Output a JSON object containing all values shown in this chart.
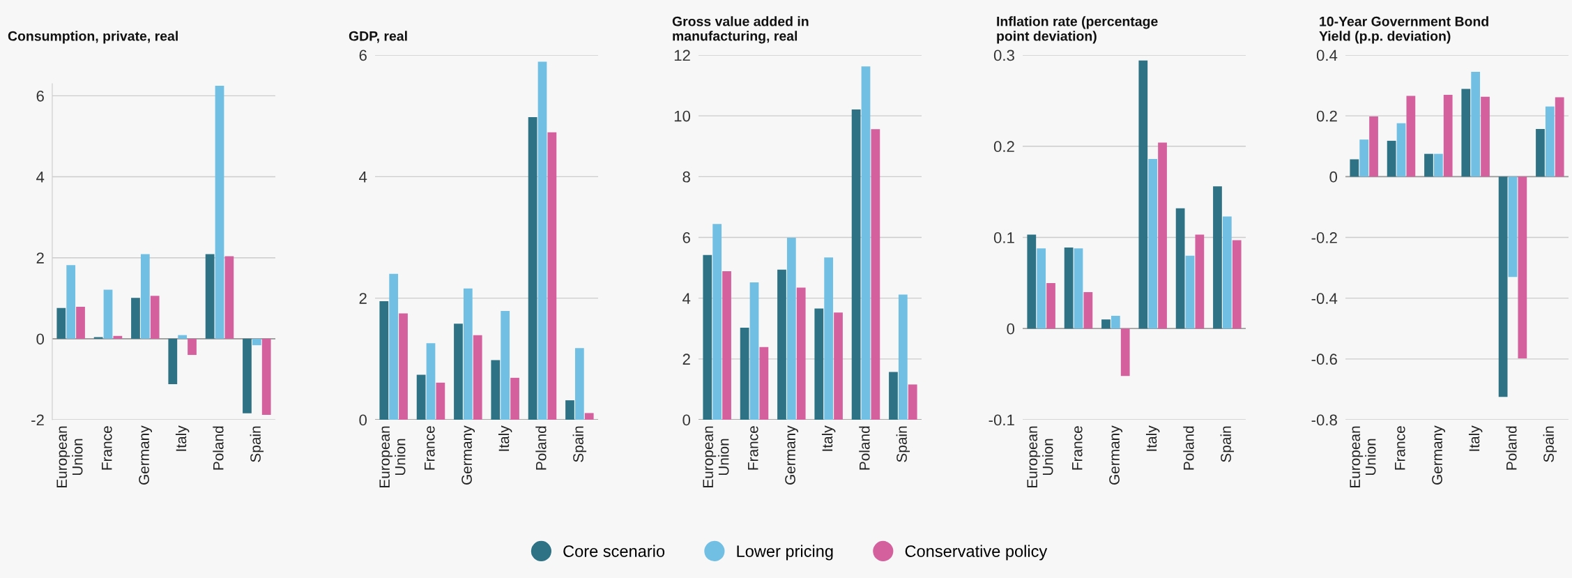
{
  "chart_data": [
    {
      "type": "bar",
      "title": "Consumption, private, real",
      "categories": [
        "European Union",
        "France",
        "Germany",
        "Italy",
        "Poland",
        "Spain"
      ],
      "legend": "bottom",
      "grid": "y",
      "ylim": [
        -2,
        6.3
      ],
      "yticks": [
        -2,
        0,
        2,
        4,
        6
      ],
      "series": [
        {
          "name": "Core scenario",
          "color": "#2e7285",
          "values": [
            0.76,
            0.04,
            1.01,
            -1.12,
            2.09,
            -1.84
          ]
        },
        {
          "name": "Lower pricing",
          "color": "#72bfe4",
          "values": [
            1.82,
            1.21,
            2.09,
            0.09,
            6.25,
            -0.16
          ]
        },
        {
          "name": "Conservative policy",
          "color": "#d5609e",
          "values": [
            0.79,
            0.07,
            1.06,
            -0.4,
            2.04,
            -1.88
          ]
        }
      ]
    },
    {
      "type": "bar",
      "title": "GDP, real",
      "categories": [
        "European Union",
        "France",
        "Germany",
        "Italy",
        "Poland",
        "Spain"
      ],
      "legend": "bottom",
      "grid": "y",
      "ylim": [
        0,
        6
      ],
      "yticks": [
        0,
        2,
        4,
        6
      ],
      "series": [
        {
          "name": "Core scenario",
          "color": "#2e7285",
          "values": [
            1.95,
            0.74,
            1.58,
            0.98,
            4.98,
            0.32
          ]
        },
        {
          "name": "Lower pricing",
          "color": "#72bfe4",
          "values": [
            2.4,
            1.26,
            2.16,
            1.79,
            5.89,
            1.18
          ]
        },
        {
          "name": "Conservative policy",
          "color": "#d5609e",
          "values": [
            1.75,
            0.61,
            1.39,
            0.69,
            4.73,
            0.11
          ]
        }
      ]
    },
    {
      "type": "bar",
      "title": "Gross value added in\nmanufacturing, real",
      "categories": [
        "European Union",
        "France",
        "Germany",
        "Italy",
        "Poland",
        "Spain"
      ],
      "legend": "bottom",
      "grid": "y",
      "ylim": [
        0,
        12
      ],
      "yticks": [
        0,
        2,
        4,
        6,
        8,
        10,
        12
      ],
      "series": [
        {
          "name": "Core scenario",
          "color": "#2e7285",
          "values": [
            5.42,
            3.03,
            4.94,
            3.66,
            10.21,
            1.57
          ]
        },
        {
          "name": "Lower pricing",
          "color": "#72bfe4",
          "values": [
            6.44,
            4.52,
            5.99,
            5.34,
            11.63,
            4.12
          ]
        },
        {
          "name": "Conservative policy",
          "color": "#d5609e",
          "values": [
            4.89,
            2.39,
            4.35,
            3.53,
            9.56,
            1.16
          ]
        }
      ]
    },
    {
      "type": "bar",
      "title": "Inflation rate (percentage\npoint deviation)",
      "categories": [
        "European Union",
        "France",
        "Germany",
        "Italy",
        "Poland",
        "Spain"
      ],
      "legend": "bottom",
      "grid": "y",
      "ylim": [
        -0.1,
        0.3
      ],
      "yticks": [
        -0.1,
        0,
        0.1,
        0.2,
        0.3
      ],
      "series": [
        {
          "name": "Core scenario",
          "color": "#2e7285",
          "values": [
            0.103,
            0.089,
            0.01,
            0.294,
            0.132,
            0.156
          ]
        },
        {
          "name": "Lower pricing",
          "color": "#72bfe4",
          "values": [
            0.088,
            0.088,
            0.014,
            0.186,
            0.08,
            0.123
          ]
        },
        {
          "name": "Conservative policy",
          "color": "#d5609e",
          "values": [
            0.05,
            0.04,
            -0.052,
            0.204,
            0.103,
            0.097
          ]
        }
      ]
    },
    {
      "type": "bar",
      "title": "10-Year Government Bond\nYield (p.p. deviation)",
      "categories": [
        "European Union",
        "France",
        "Germany",
        "Italy",
        "Poland",
        "Spain"
      ],
      "legend": "bottom",
      "grid": "y",
      "ylim": [
        -0.8,
        0.4
      ],
      "yticks": [
        -0.8,
        -0.6,
        -0.4,
        -0.2,
        0,
        0.2,
        0.4
      ],
      "series": [
        {
          "name": "Core scenario",
          "color": "#2e7285",
          "values": [
            0.057,
            0.118,
            0.075,
            0.289,
            -0.725,
            0.157
          ]
        },
        {
          "name": "Lower pricing",
          "color": "#72bfe4",
          "values": [
            0.122,
            0.176,
            0.075,
            0.345,
            -0.33,
            0.231
          ]
        },
        {
          "name": "Conservative policy",
          "color": "#d5609e",
          "values": [
            0.198,
            0.266,
            0.269,
            0.263,
            -0.598,
            0.261
          ]
        }
      ]
    }
  ]
}
